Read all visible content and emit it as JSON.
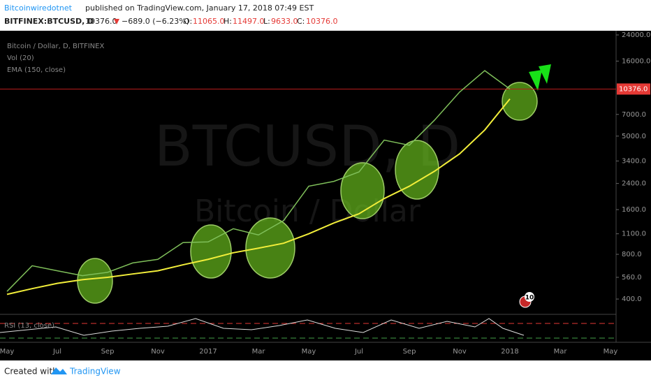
{
  "header": {
    "author": "Bitcoinwiredotnet",
    "published": "published on TradingView.com, January 17, 2018 07:49 EST",
    "symbol": "BITFINEX:BTCUSD, D",
    "last": "10376.0",
    "change": "−689.0 (−6.23%)",
    "open_label": "O:",
    "open": "11065.0",
    "high_label": "H:",
    "high": "11497.0",
    "low_label": "L:",
    "low": "9633.0",
    "close_label": "C:",
    "close": "10376.0"
  },
  "chart_data": {
    "type": "line",
    "log_scale": true,
    "legend": [
      "Bitcoin / Dollar, D, BITFINEX",
      "Vol (20)",
      "EMA (150, close)"
    ],
    "watermark": "BTCUSD, D",
    "watermark_sub": "Bitcoin / Dollar",
    "indicator": "RSI (13, close)",
    "badge": "10",
    "categories": [
      "May",
      null,
      "Jul",
      null,
      "Sep",
      null,
      "Nov",
      null,
      "2017",
      null,
      "Mar",
      null,
      "May",
      null,
      "Jul",
      null,
      "Sep",
      null,
      "Nov",
      null,
      "2018",
      null,
      "Mar",
      null,
      "May"
    ],
    "series": [
      {
        "name": "Bitcoin / Dollar",
        "color": "#7fbf5a",
        "values": [
          450,
          670,
          620,
          575,
          605,
          700,
          740,
          960,
          970,
          1190,
          1080,
          1350,
          2300,
          2480,
          2870,
          4700,
          4340,
          6400,
          9900,
          13800,
          10376,
          null,
          null,
          null,
          null
        ]
      },
      {
        "name": "EMA (150, close)",
        "color": "#f2ee3a",
        "values": [
          430,
          470,
          510,
          540,
          560,
          590,
          620,
          680,
          740,
          820,
          880,
          950,
          1100,
          1300,
          1500,
          1900,
          2300,
          2900,
          3800,
          5500,
          8900,
          null,
          null,
          null,
          null
        ]
      }
    ],
    "last_price": {
      "value": 10376,
      "label": "10376.0"
    },
    "ylim": [
      333,
      26750
    ],
    "yticks": [
      {
        "value": 400,
        "label": "400.0"
      },
      {
        "value": 560,
        "label": "560.0"
      },
      {
        "value": 800,
        "label": "800.0"
      },
      {
        "value": 1100,
        "label": "1100.0"
      },
      {
        "value": 1600,
        "label": "1600.0"
      },
      {
        "value": 2400,
        "label": "2400.0"
      },
      {
        "value": 3400,
        "label": "3400.0"
      },
      {
        "value": 5000,
        "label": "5000.0"
      },
      {
        "value": 7000,
        "label": "7000.0"
      },
      {
        "value": 16000,
        "label": "16000.0"
      },
      {
        "value": 24000,
        "label": "24000.0"
      }
    ],
    "footer": "Created with",
    "brand": "TradingView"
  }
}
